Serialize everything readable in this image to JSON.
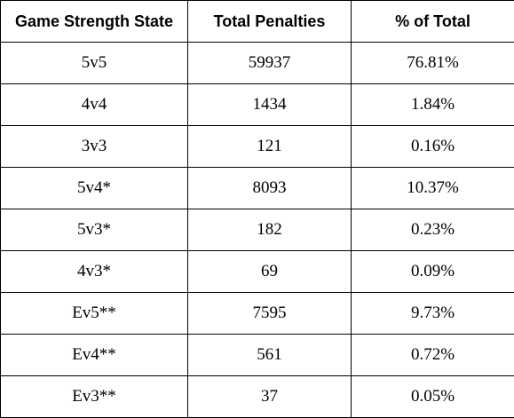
{
  "table": {
    "headers": [
      "Game Strength State",
      "Total Penalties",
      "% of Total"
    ],
    "rows": [
      [
        "5v5",
        "59937",
        "76.81%"
      ],
      [
        "4v4",
        "1434",
        "1.84%"
      ],
      [
        "3v3",
        "121",
        "0.16%"
      ],
      [
        "5v4*",
        "8093",
        "10.37%"
      ],
      [
        "5v3*",
        "182",
        "0.23%"
      ],
      [
        "4v3*",
        "69",
        "0.09%"
      ],
      [
        "Ev5**",
        "7595",
        "9.73%"
      ],
      [
        "Ev4**",
        "561",
        "0.72%"
      ],
      [
        "Ev3**",
        "37",
        "0.05%"
      ]
    ]
  }
}
